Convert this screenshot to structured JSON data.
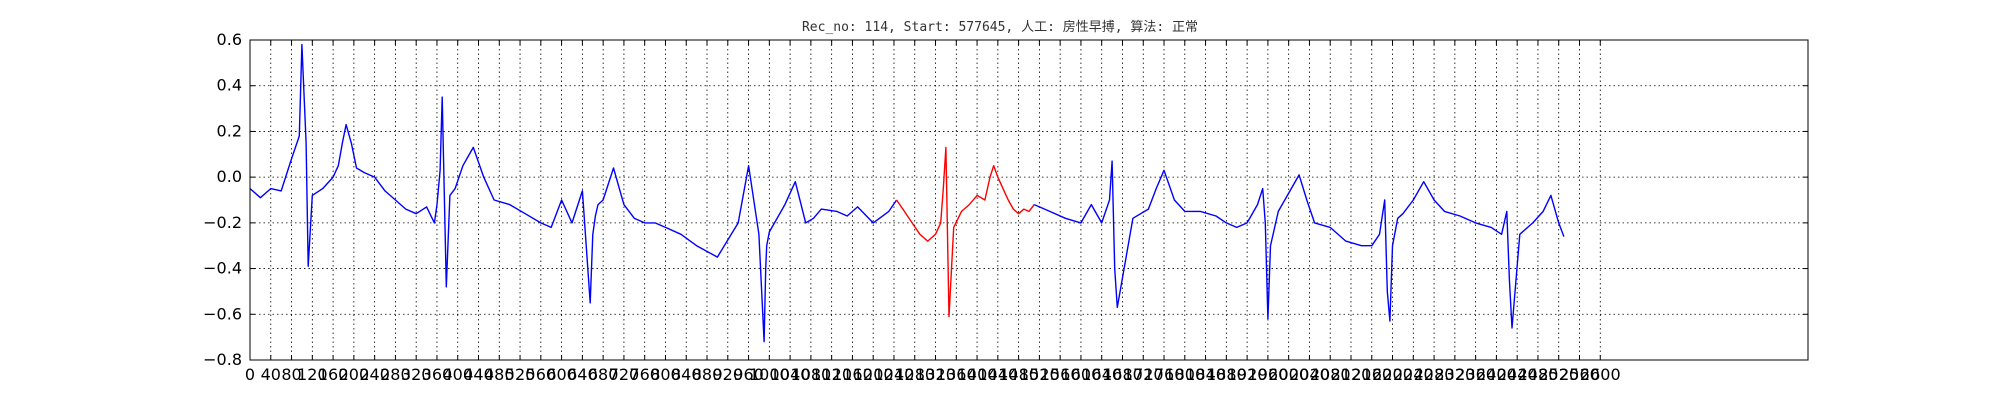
{
  "chart_data": {
    "type": "line",
    "title": "Rec_no: 114, Start: 577645, 人工: 房性早搏, 算法: 正常",
    "xlabel": "",
    "ylabel": "",
    "xlim": [
      0,
      3000
    ],
    "ylim": [
      -0.8,
      0.6
    ],
    "grid": true,
    "legend": "none",
    "xticks": [
      0,
      40,
      80,
      120,
      160,
      200,
      240,
      280,
      320,
      360,
      400,
      440,
      480,
      520,
      560,
      600,
      640,
      680,
      720,
      760,
      800,
      840,
      880,
      920,
      960,
      1000,
      1040,
      1080,
      1120,
      1160,
      1200,
      1240,
      1280,
      1320,
      1360,
      1400,
      1440,
      1480,
      1520,
      1560,
      1600,
      1640,
      1680,
      1720,
      1760,
      1800,
      1840,
      1880,
      1920,
      1960,
      2000,
      2040,
      2080,
      2120,
      2160,
      2200,
      2240,
      2280,
      2320,
      2360,
      2400,
      2440,
      2480,
      2520,
      2560,
      2600
    ],
    "yticks": [
      -0.8,
      -0.6,
      -0.4,
      -0.2,
      0.0,
      0.2,
      0.4,
      0.6
    ],
    "ytick_labels": [
      "−0.8",
      "−0.6",
      "−0.4",
      "−0.2",
      "0.0",
      "0.2",
      "0.4",
      "0.6"
    ],
    "series": [
      {
        "color": "#0000ff",
        "x": [
          0,
          20,
          40,
          60,
          80,
          95,
          100,
          108,
          112,
          120,
          140,
          160,
          170,
          178,
          185,
          195,
          205,
          220,
          240,
          260,
          280,
          300,
          320,
          340,
          355,
          360,
          366,
          370,
          378,
          385,
          395,
          410,
          430,
          450,
          470,
          500,
          530,
          560,
          580,
          600,
          620,
          640,
          655,
          660,
          665,
          670,
          680,
          700,
          720,
          740,
          760,
          780,
          800,
          830,
          860,
          900,
          940,
          960,
          980,
          990,
          993,
          995,
          1000,
          1010,
          1030,
          1050,
          1070,
          1085,
          1100,
          1130,
          1150,
          1170,
          1200,
          1230,
          1245
        ],
        "y": [
          -0.05,
          -0.09,
          -0.05,
          -0.06,
          0.08,
          0.18,
          0.58,
          0.15,
          -0.39,
          -0.08,
          -0.05,
          0.0,
          0.05,
          0.15,
          0.23,
          0.15,
          0.04,
          0.02,
          0.0,
          -0.06,
          -0.1,
          -0.14,
          -0.16,
          -0.13,
          -0.2,
          -0.12,
          0.03,
          0.35,
          -0.48,
          -0.08,
          -0.05,
          0.05,
          0.13,
          0.0,
          -0.1,
          -0.12,
          -0.16,
          -0.2,
          -0.22,
          -0.1,
          -0.2,
          -0.06,
          -0.55,
          -0.25,
          -0.17,
          -0.12,
          -0.1,
          0.04,
          -0.12,
          -0.18,
          -0.2,
          -0.2,
          -0.22,
          -0.25,
          -0.3,
          -0.35,
          -0.2,
          0.05,
          -0.25,
          -0.72,
          -0.4,
          -0.3,
          -0.24,
          -0.2,
          -0.12,
          -0.02,
          -0.2,
          -0.18,
          -0.14,
          -0.15,
          -0.17,
          -0.13,
          -0.2,
          -0.15,
          -0.1
        ]
      },
      {
        "color": "#ff0000",
        "x": [
          1245,
          1260,
          1275,
          1290,
          1305,
          1320,
          1330,
          1335,
          1340,
          1346,
          1355,
          1370,
          1385,
          1400,
          1415,
          1425,
          1432,
          1440,
          1450,
          1460,
          1470,
          1480,
          1490,
          1500,
          1510
        ],
        "y": [
          -0.1,
          -0.15,
          -0.2,
          -0.25,
          -0.28,
          -0.25,
          -0.2,
          -0.05,
          0.13,
          -0.61,
          -0.22,
          -0.15,
          -0.12,
          -0.08,
          -0.1,
          0.0,
          0.05,
          0.0,
          -0.05,
          -0.1,
          -0.14,
          -0.16,
          -0.14,
          -0.15,
          -0.12
        ]
      },
      {
        "color": "#0000ff",
        "x": [
          1510,
          1540,
          1570,
          1600,
          1620,
          1640,
          1655,
          1660,
          1665,
          1670,
          1700,
          1730,
          1745,
          1760,
          1780,
          1800,
          1830,
          1860,
          1880,
          1900,
          1920,
          1940,
          1950,
          1955,
          1960,
          1965,
          1980,
          2000,
          2020,
          2035,
          2050,
          2080,
          2110,
          2140,
          2160,
          2175,
          2185,
          2190,
          2195,
          2200,
          2210,
          2220,
          2240,
          2260,
          2280,
          2300,
          2330,
          2360,
          2390,
          2410,
          2420,
          2425,
          2430,
          2445,
          2470,
          2490,
          2505,
          2520,
          2530
        ],
        "y": [
          -0.12,
          -0.15,
          -0.18,
          -0.2,
          -0.12,
          -0.2,
          -0.1,
          0.07,
          -0.4,
          -0.57,
          -0.18,
          -0.14,
          -0.05,
          0.03,
          -0.1,
          -0.15,
          -0.15,
          -0.17,
          -0.2,
          -0.22,
          -0.2,
          -0.12,
          -0.05,
          -0.2,
          -0.62,
          -0.3,
          -0.15,
          -0.07,
          0.01,
          -0.1,
          -0.2,
          -0.22,
          -0.28,
          -0.3,
          -0.3,
          -0.25,
          -0.1,
          -0.5,
          -0.63,
          -0.3,
          -0.18,
          -0.16,
          -0.1,
          -0.02,
          -0.1,
          -0.15,
          -0.17,
          -0.2,
          -0.22,
          -0.25,
          -0.15,
          -0.45,
          -0.66,
          -0.25,
          -0.2,
          -0.15,
          -0.08,
          -0.2,
          -0.26
        ]
      }
    ]
  }
}
